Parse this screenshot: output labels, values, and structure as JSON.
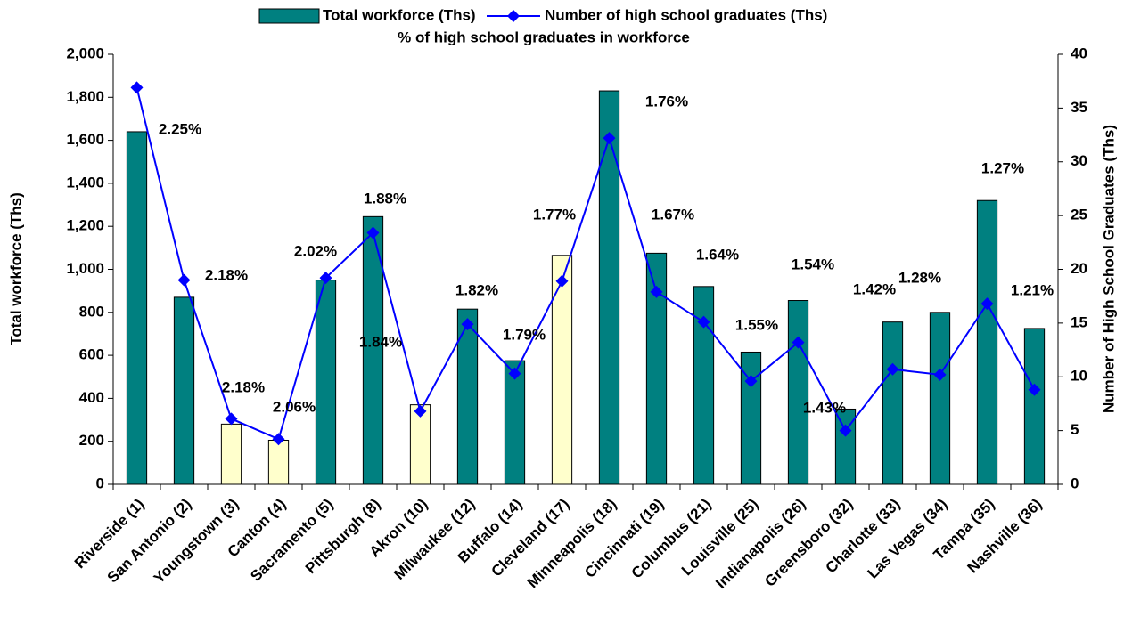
{
  "chart_data": {
    "type": "bar_line",
    "categories": [
      "Riverside (1)",
      "San Antonio (2)",
      "Youngstown (3)",
      "Canton (4)",
      "Sacramento (5)",
      "Pittsburgh (8)",
      "Akron (10)",
      "Milwaukee (12)",
      "Buffalo (14)",
      "Cleveland (17)",
      "Minneapolis (18)",
      "Cincinnati (19)",
      "Columbus (21)",
      "Louisville (25)",
      "Indianapolis (26)",
      "Greensboro (32)",
      "Charlotte (33)",
      "Las Vegas (34)",
      "Tampa (35)",
      "Nashville (36)"
    ],
    "series": [
      {
        "name": "Total workforce (Ths)",
        "type": "bar",
        "color": "#008080",
        "colors": [
          "#008080",
          "#008080",
          "#ffffcc",
          "#ffffcc",
          "#008080",
          "#008080",
          "#ffffcc",
          "#008080",
          "#008080",
          "#ffffcc",
          "#008080",
          "#008080",
          "#008080",
          "#008080",
          "#008080",
          "#008080",
          "#008080",
          "#008080",
          "#008080",
          "#008080"
        ],
        "values": [
          1640,
          870,
          280,
          205,
          950,
          1245,
          370,
          815,
          575,
          1065,
          1830,
          1075,
          920,
          615,
          855,
          350,
          755,
          800,
          1320,
          725
        ]
      },
      {
        "name": "Number of high school graduates (Ths)",
        "type": "line",
        "axis": "y2",
        "color": "#0000ff",
        "values": [
          36.9,
          19.0,
          6.1,
          4.2,
          19.2,
          23.4,
          6.8,
          14.9,
          10.3,
          18.9,
          32.2,
          17.9,
          15.1,
          9.6,
          13.2,
          5.0,
          10.7,
          10.2,
          16.8,
          8.8
        ]
      },
      {
        "name": "% of high school graduates in workforce",
        "type": "label",
        "values": [
          2.25,
          2.18,
          2.18,
          2.06,
          2.02,
          1.88,
          1.84,
          1.82,
          1.79,
          1.77,
          1.76,
          1.67,
          1.64,
          1.55,
          1.54,
          1.43,
          1.42,
          1.28,
          1.27,
          1.21
        ],
        "value_labels": [
          "2.25%",
          "2.18%",
          "2.18%",
          "2.06%",
          "2.02%",
          "1.88%",
          "1.84%",
          "1.82%",
          "1.79%",
          "1.77%",
          "1.76%",
          "1.67%",
          "1.64%",
          "1.55%",
          "1.54%",
          "1.43%",
          "1.42%",
          "1.28%",
          "1.27%",
          "1.21%"
        ]
      }
    ],
    "y_label": "Total workforce (Ths)",
    "y2_label": "Number of High School Graduates (Ths)",
    "ylim": [
      0,
      2000
    ],
    "yticks": [
      0,
      200,
      400,
      600,
      800,
      {
        "value": 1000,
        "label": "1,000"
      },
      {
        "value": 1200,
        "label": "1,200"
      },
      {
        "value": 1400,
        "label": "1,400"
      },
      {
        "value": 1600,
        "label": "1,600"
      },
      {
        "value": 1800,
        "label": "1,800"
      },
      {
        "value": 2000,
        "label": "2,000"
      }
    ],
    "y2lim": [
      0,
      40
    ],
    "y2ticks": [
      0,
      5,
      10,
      15,
      20,
      25,
      30,
      35,
      40
    ],
    "grid": false
  }
}
